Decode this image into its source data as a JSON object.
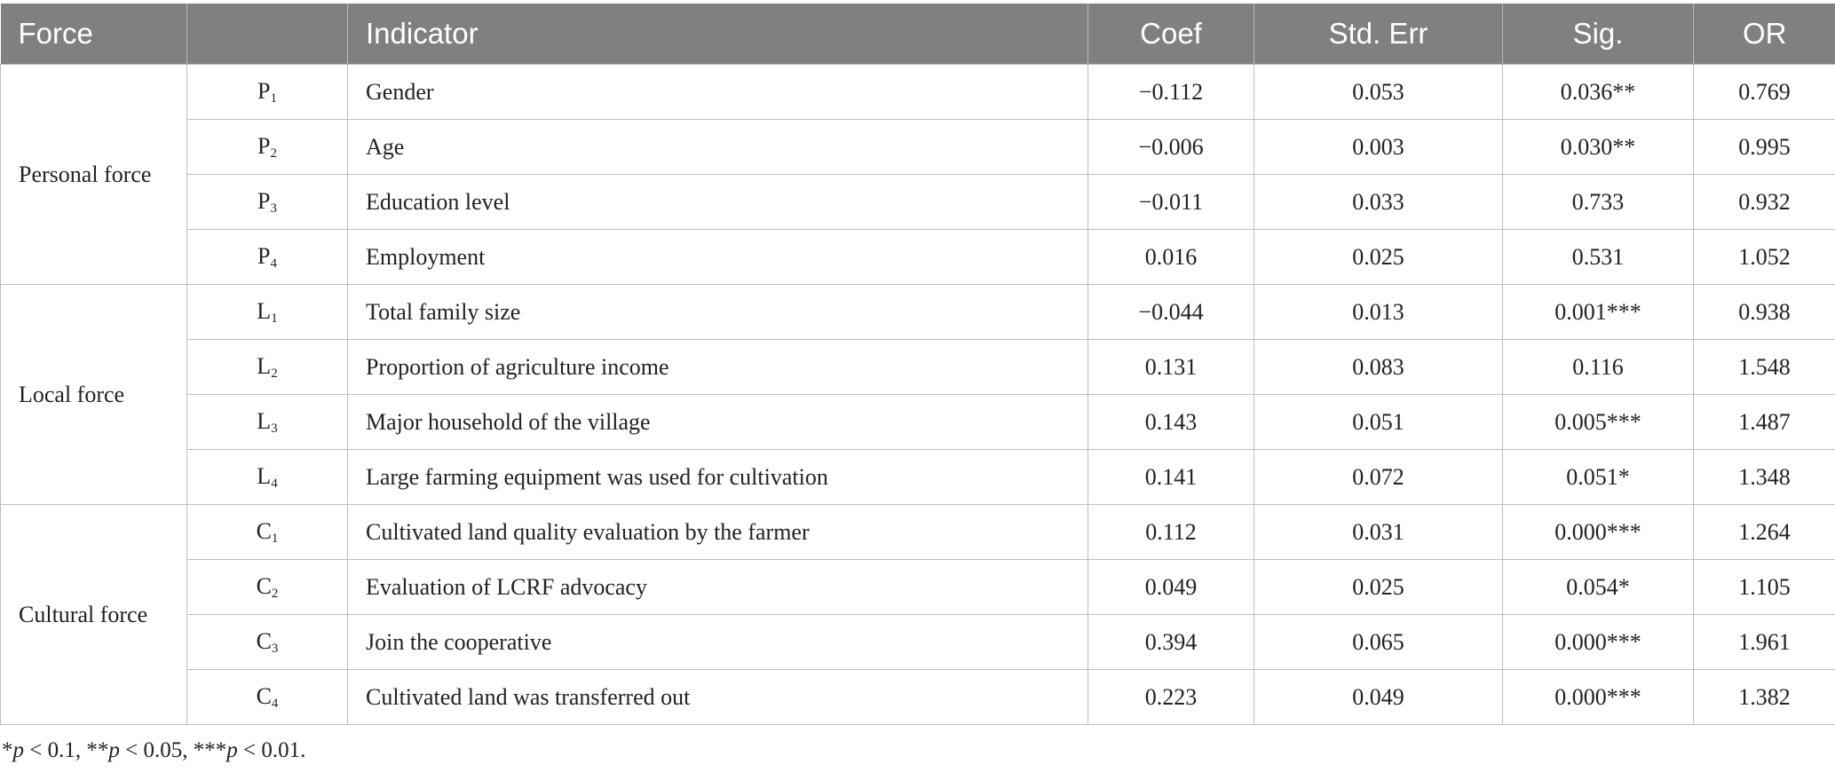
{
  "table": {
    "headers": [
      "Force",
      "",
      "Indicator",
      "Coef",
      "Std. Err",
      "Sig.",
      "OR"
    ],
    "groups": [
      {
        "force": "Personal force",
        "rows": [
          {
            "code_letter": "P",
            "code_sub": "1",
            "indicator": "Gender",
            "coef": "−0.112",
            "std_err": "0.053",
            "sig": "0.036**",
            "or": "0.769"
          },
          {
            "code_letter": "P",
            "code_sub": "2",
            "indicator": "Age",
            "coef": "−0.006",
            "std_err": "0.003",
            "sig": "0.030**",
            "or": "0.995"
          },
          {
            "code_letter": "P",
            "code_sub": "3",
            "indicator": "Education level",
            "coef": "−0.011",
            "std_err": "0.033",
            "sig": "0.733",
            "or": "0.932"
          },
          {
            "code_letter": "P",
            "code_sub": "4",
            "indicator": "Employment",
            "coef": "0.016",
            "std_err": "0.025",
            "sig": "0.531",
            "or": "1.052"
          }
        ]
      },
      {
        "force": "Local force",
        "rows": [
          {
            "code_letter": "L",
            "code_sub": "1",
            "indicator": "Total family size",
            "coef": "−0.044",
            "std_err": "0.013",
            "sig": "0.001***",
            "or": "0.938"
          },
          {
            "code_letter": "L",
            "code_sub": "2",
            "indicator": "Proportion of agriculture income",
            "coef": "0.131",
            "std_err": "0.083",
            "sig": "0.116",
            "or": "1.548"
          },
          {
            "code_letter": "L",
            "code_sub": "3",
            "indicator": "Major household of the village",
            "coef": "0.143",
            "std_err": "0.051",
            "sig": "0.005***",
            "or": "1.487"
          },
          {
            "code_letter": "L",
            "code_sub": "4",
            "indicator": "Large farming equipment was used for cultivation",
            "coef": "0.141",
            "std_err": "0.072",
            "sig": "0.051*",
            "or": "1.348"
          }
        ]
      },
      {
        "force": "Cultural force",
        "rows": [
          {
            "code_letter": "C",
            "code_sub": "1",
            "indicator": "Cultivated land quality evaluation by the farmer",
            "coef": "0.112",
            "std_err": "0.031",
            "sig": "0.000***",
            "or": "1.264"
          },
          {
            "code_letter": "C",
            "code_sub": "2",
            "indicator": "Evaluation of LCRF advocacy",
            "coef": "0.049",
            "std_err": "0.025",
            "sig": "0.054*",
            "or": "1.105"
          },
          {
            "code_letter": "C",
            "code_sub": "3",
            "indicator": "Join the cooperative",
            "coef": "0.394",
            "std_err": "0.065",
            "sig": "0.000***",
            "or": "1.961"
          },
          {
            "code_letter": "C",
            "code_sub": "4",
            "indicator": "Cultivated land was transferred out",
            "coef": "0.223",
            "std_err": "0.049",
            "sig": "0.000***",
            "or": "1.382"
          }
        ]
      }
    ]
  },
  "footnote": {
    "parts": [
      "*",
      "p",
      " < 0.1, **",
      "p",
      " < 0.05, ***",
      "p",
      " < 0.01."
    ]
  }
}
